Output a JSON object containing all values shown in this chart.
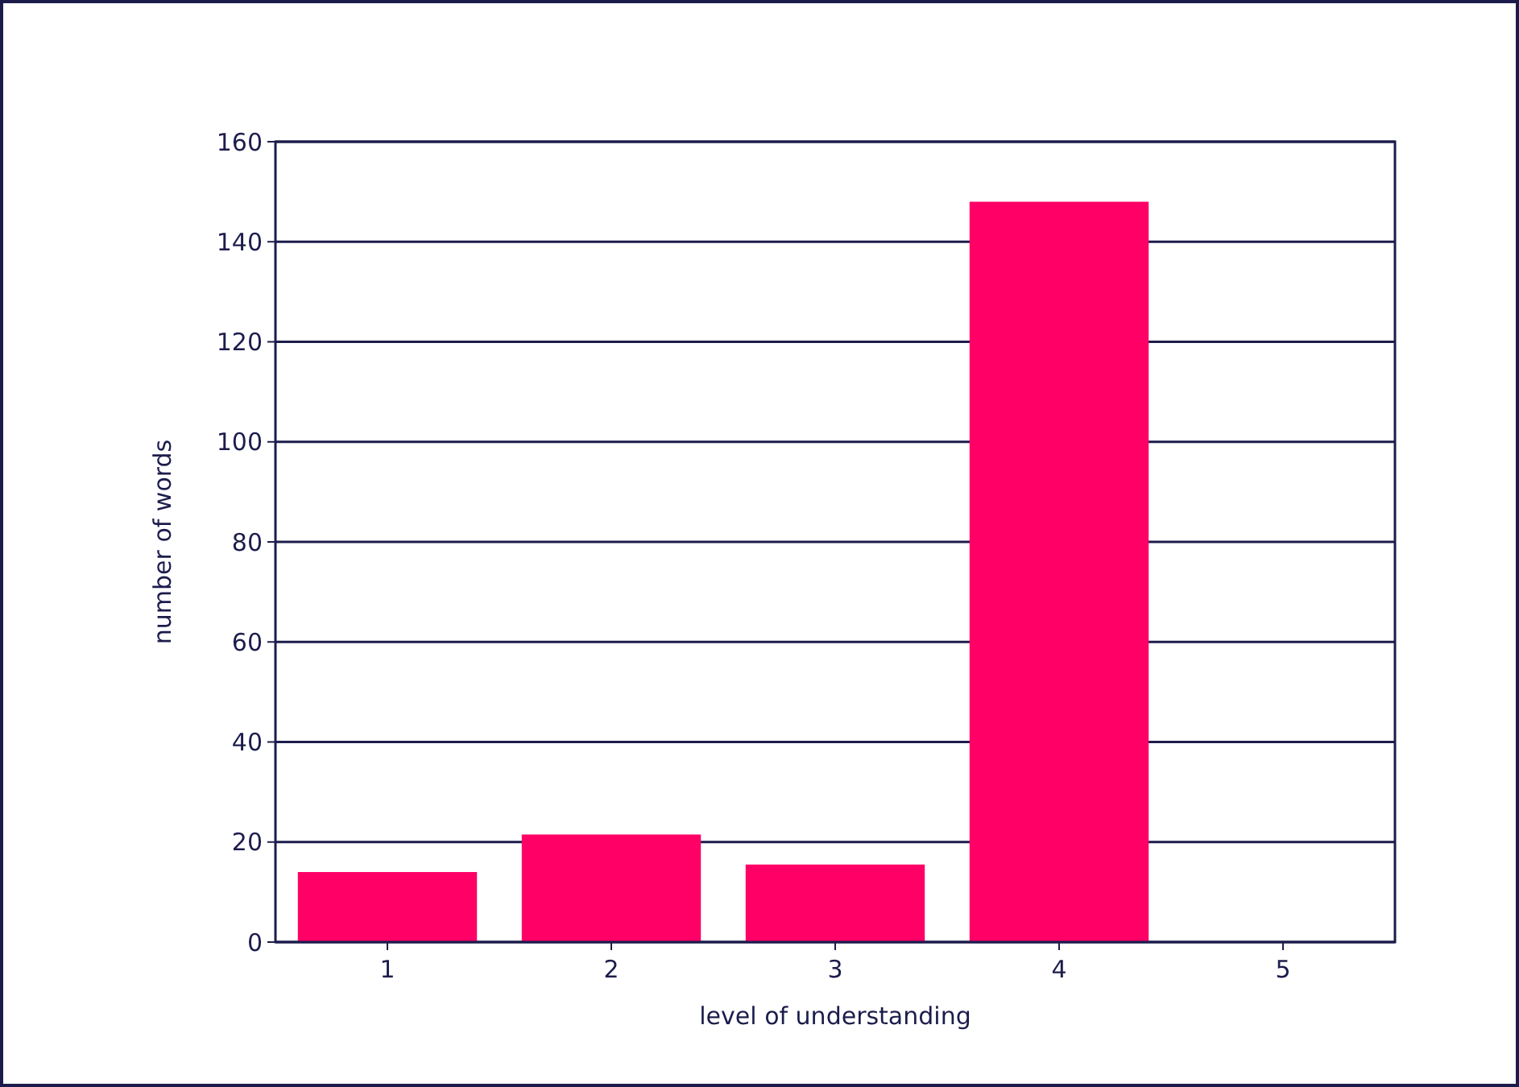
{
  "chart_data": {
    "type": "bar",
    "xlabel": "level of understanding",
    "ylabel": "number of words",
    "categories": [
      "1",
      "2",
      "3",
      "4",
      "5"
    ],
    "values": [
      14,
      21.5,
      15.5,
      148,
      0
    ],
    "color": "#ff0066",
    "ylim": [
      0,
      160
    ],
    "yticks": [
      0,
      20,
      40,
      60,
      80,
      100,
      120,
      140,
      160
    ],
    "grid": "y"
  }
}
